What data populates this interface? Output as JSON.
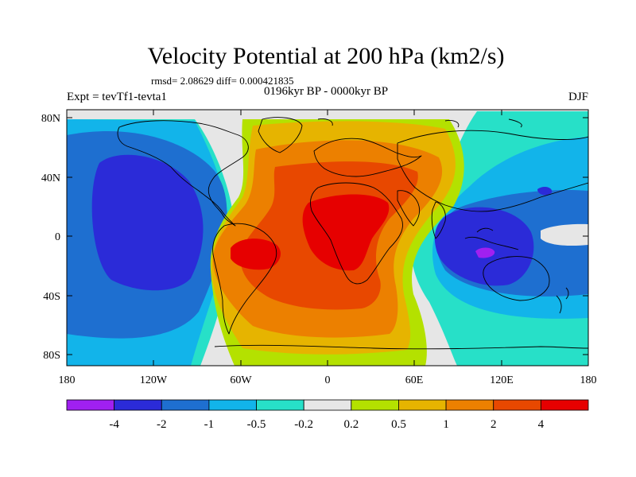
{
  "title": "Velocity Potential at 200 hPa (km2/s)",
  "stats": "rmsd= 2.08629 diff= 0.000421835",
  "left_label": "Expt = tevTf1-tevta1",
  "center_label": "0196kyr BP - 0000kyr BP",
  "season": "DJF",
  "y_ticks": [
    "80N",
    "40N",
    "0",
    "40S",
    "80S"
  ],
  "x_ticks": [
    "180",
    "120W",
    "60W",
    "0",
    "60E",
    "120E",
    "180"
  ],
  "colorbar": {
    "colors": [
      "#a020f0",
      "#2b2bd8",
      "#1e6fd0",
      "#12b4ea",
      "#27e0c8",
      "#e6e6e6",
      "#b4e100",
      "#e6b400",
      "#ec8000",
      "#e84800",
      "#e60000"
    ],
    "labels": [
      "-4",
      "-2",
      "-1",
      "-0.5",
      "-0.2",
      "0.2",
      "0.5",
      "1",
      "2",
      "4"
    ]
  },
  "colors": {
    "neutral": "#e6e6e6",
    "pos1": "#b4e100",
    "pos2": "#e6b400",
    "pos3": "#ec8000",
    "pos4": "#e84800",
    "pos5": "#e60000",
    "neg1": "#27e0c8",
    "neg2": "#12b4ea",
    "neg3": "#1e6fd0",
    "neg4": "#2b2bd8",
    "neg5": "#a020f0"
  }
}
